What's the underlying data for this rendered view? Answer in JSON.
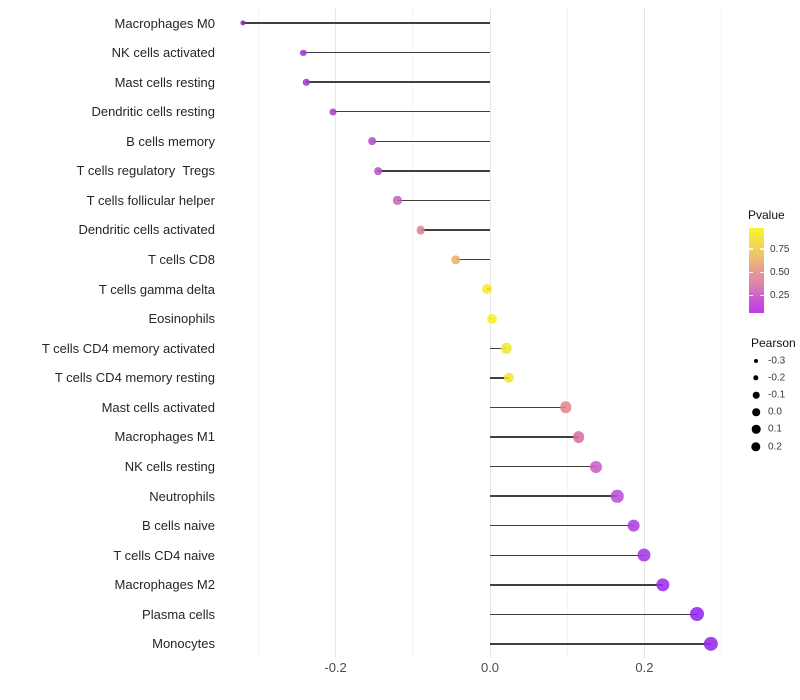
{
  "chart_data": {
    "type": "scatter",
    "subtype": "lollipop",
    "title": "",
    "xlabel": "",
    "ylabel": "",
    "xlim": [
      -0.35,
      0.317
    ],
    "grid": "on",
    "x_ticks": [
      {
        "value": -0.2,
        "label": "-0.2"
      },
      {
        "value": 0.0,
        "label": "0.0"
      },
      {
        "value": 0.2,
        "label": "0.2"
      }
    ],
    "x_minor_gridlines": [
      -0.3,
      -0.1,
      0.1,
      0.3
    ],
    "rows": [
      {
        "name": "Macrophages M0",
        "pearson": -0.32,
        "color": "#7d2fb5"
      },
      {
        "name": "NK cells activated",
        "pearson": -0.242,
        "color": "#a139d5"
      },
      {
        "name": "Mast cells resting",
        "pearson": -0.238,
        "color": "#a23bd4"
      },
      {
        "name": "Dendritic cells resting",
        "pearson": -0.203,
        "color": "#a840d1"
      },
      {
        "name": "B cells memory",
        "pearson": -0.153,
        "color": "#b24ecd"
      },
      {
        "name": "T cells regulatory  Tregs",
        "pearson": -0.145,
        "color": "#b755c8"
      },
      {
        "name": "T cells follicular helper",
        "pearson": -0.12,
        "color": "#c167bd"
      },
      {
        "name": "Dendritic cells activated",
        "pearson": -0.09,
        "color": "#da8494"
      },
      {
        "name": "T cells CD8",
        "pearson": -0.044,
        "color": "#eab366"
      },
      {
        "name": "T cells gamma delta",
        "pearson": -0.004,
        "color": "#f5ec2d"
      },
      {
        "name": "Eosinophils",
        "pearson": 0.002,
        "color": "#f7ee28"
      },
      {
        "name": "T cells CD4 memory activated",
        "pearson": 0.021,
        "color": "#f3e832"
      },
      {
        "name": "T cells CD4 memory resting",
        "pearson": 0.024,
        "color": "#f3e535"
      },
      {
        "name": "Mast cells activated",
        "pearson": 0.098,
        "color": "#e3868e"
      },
      {
        "name": "Macrophages M1",
        "pearson": 0.115,
        "color": "#d771a7"
      },
      {
        "name": "NK cells resting",
        "pearson": 0.137,
        "color": "#ca5fc7"
      },
      {
        "name": "Neutrophils",
        "pearson": 0.165,
        "color": "#b94fd8"
      },
      {
        "name": "B cells naive",
        "pearson": 0.186,
        "color": "#ac41e1"
      },
      {
        "name": "T cells CD4 naive",
        "pearson": 0.2,
        "color": "#a538e7"
      },
      {
        "name": "Macrophages M2",
        "pearson": 0.224,
        "color": "#9c2eec"
      },
      {
        "name": "Plasma cells",
        "pearson": 0.268,
        "color": "#9227f0"
      },
      {
        "name": "Monocytes",
        "pearson": 0.286,
        "color": "#9929e9"
      }
    ],
    "legends": {
      "pvalue": {
        "title": "Pvalue",
        "ticks": [
          {
            "label": "0.75",
            "offset": 21
          },
          {
            "label": "0.50",
            "offset": 44.5
          },
          {
            "label": "0.25",
            "offset": 67.5
          }
        ],
        "gradient_bottom_to_top": [
          "#c03be7",
          "#ca58d2",
          "#dc84ab",
          "#e69c90",
          "#eec06e",
          "#f4dc4c",
          "#f8f42e"
        ]
      },
      "pearson": {
        "title": "Pearson",
        "entries": [
          {
            "label": "-0.3",
            "diameter": 4.0
          },
          {
            "label": "-0.2",
            "diameter": 5.4
          },
          {
            "label": "-0.1",
            "diameter": 6.6
          },
          {
            "label": "0.0",
            "diameter": 7.6
          },
          {
            "label": "0.1",
            "diameter": 8.6
          },
          {
            "label": "0.2",
            "diameter": 9.4
          }
        ]
      }
    }
  }
}
